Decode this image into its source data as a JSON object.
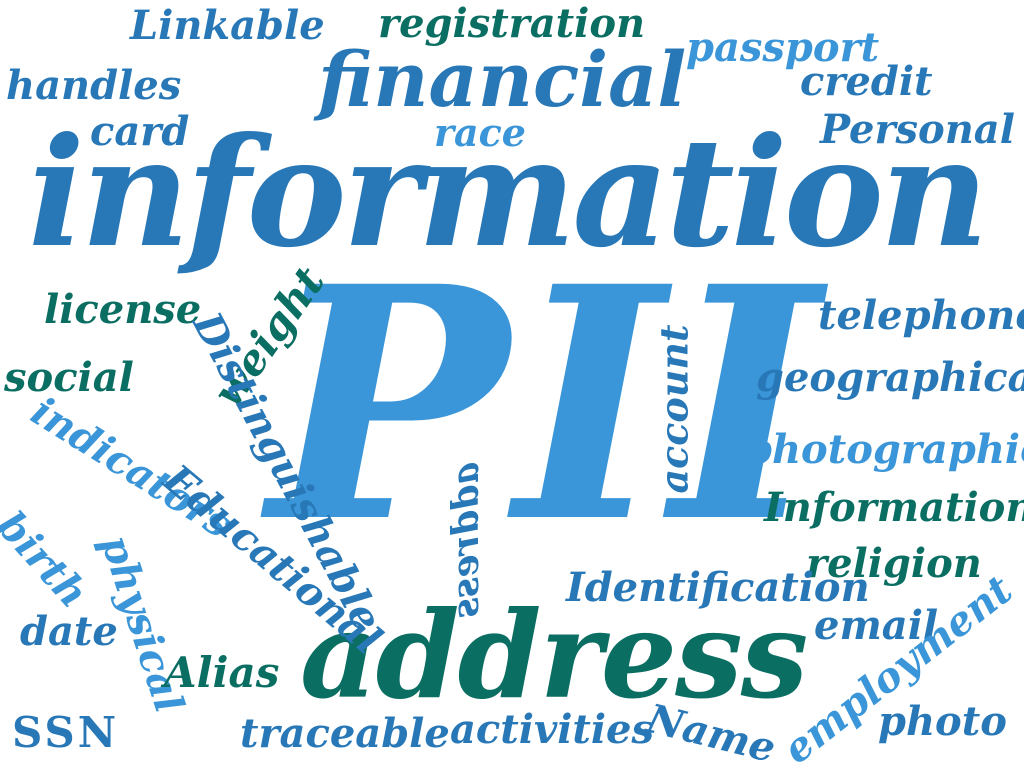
{
  "colors": {
    "dark_blue": "#2878b8",
    "light_blue": "#3a96d8",
    "teal": "#0a6e62"
  },
  "words": {
    "information": "information",
    "pii": "PII",
    "address_big": "address",
    "financial": "financial",
    "linkable": "Linkable",
    "registration": "registration",
    "passport": "passport",
    "handles": "handles",
    "credit": "credit",
    "card": "card",
    "race": "race",
    "personal": "Personal",
    "license": "license",
    "telephone": "telephone",
    "weight": "weight",
    "social": "social",
    "geographical": "geographical",
    "account": "account",
    "distinguishable": "Distinguishable",
    "indicators": "indicators",
    "address_small": "address",
    "photographic": "photographic",
    "information_small": "Information",
    "religion": "religion",
    "birth": "birth",
    "educational": "Educational",
    "physical": "physical",
    "identification": "Identification",
    "date": "date",
    "email": "email",
    "alias": "Alias",
    "employment": "employment",
    "ssn": "SSN",
    "traceable": "traceable",
    "activities": "activities",
    "name": "Name",
    "photo": "photo"
  }
}
